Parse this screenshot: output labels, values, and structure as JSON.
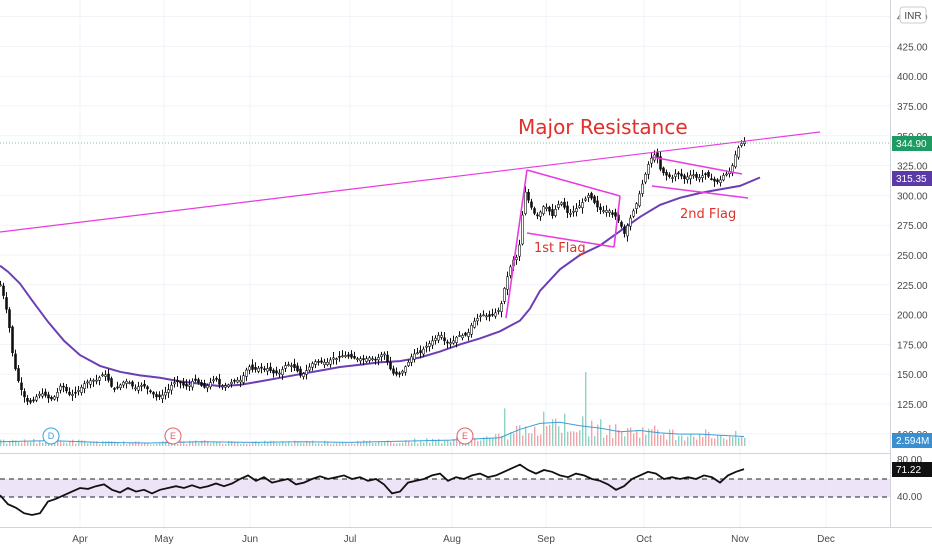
{
  "chart_data": {
    "type": "candlestick",
    "currency": "INR",
    "price_axis": {
      "ticks": [
        "100.00",
        "125.00",
        "150.00",
        "175.00",
        "200.00",
        "225.00",
        "250.00",
        "275.00",
        "300.00",
        "325.00",
        "350.00",
        "375.00",
        "400.00",
        "425.00",
        "450.00"
      ],
      "range": [
        96,
        468
      ]
    },
    "x_axis": {
      "months": [
        "Apr",
        "May",
        "Jun",
        "Jul",
        "Aug",
        "Sep",
        "Oct",
        "Nov",
        "Dec"
      ]
    },
    "last_price": "344.90",
    "ma_value": "315.35",
    "volume_value": "2.594M",
    "rsi": {
      "value": "71.22",
      "ticks": [
        "80.00",
        "40.00"
      ],
      "bands": [
        60,
        40
      ]
    },
    "annotations": {
      "title": "Major Resistance",
      "flag1": "1st Flag",
      "flag2": "2nd Flag"
    },
    "events": [
      {
        "label": "D"
      },
      {
        "label": "E"
      },
      {
        "label": "E"
      }
    ],
    "anchors": {
      "close": [
        [
          0,
          225
        ],
        [
          4,
          213
        ],
        [
          8,
          196
        ],
        [
          12,
          168
        ],
        [
          16,
          150
        ],
        [
          20,
          139
        ],
        [
          24,
          131
        ],
        [
          28,
          126
        ],
        [
          32,
          127
        ],
        [
          36,
          131
        ],
        [
          40,
          134
        ],
        [
          44,
          133
        ],
        [
          48,
          130
        ],
        [
          52,
          129
        ],
        [
          56,
          133
        ],
        [
          60,
          140
        ],
        [
          64,
          139
        ],
        [
          68,
          133
        ],
        [
          72,
          133
        ],
        [
          76,
          135
        ],
        [
          80,
          138
        ],
        [
          84,
          142
        ],
        [
          88,
          144
        ],
        [
          92,
          145
        ],
        [
          96,
          145
        ],
        [
          100,
          148
        ],
        [
          104,
          151
        ],
        [
          108,
          145
        ],
        [
          112,
          138
        ],
        [
          116,
          138
        ],
        [
          120,
          141
        ],
        [
          124,
          144
        ],
        [
          128,
          144
        ],
        [
          132,
          140
        ],
        [
          136,
          138
        ],
        [
          140,
          141
        ],
        [
          144,
          140
        ],
        [
          148,
          137
        ],
        [
          152,
          134
        ],
        [
          156,
          131
        ],
        [
          160,
          131
        ],
        [
          164,
          134
        ],
        [
          168,
          137
        ],
        [
          172,
          142
        ],
        [
          176,
          144
        ],
        [
          180,
          143
        ],
        [
          184,
          140
        ],
        [
          188,
          140
        ],
        [
          192,
          144
        ],
        [
          196,
          145
        ],
        [
          200,
          141
        ],
        [
          204,
          139
        ],
        [
          208,
          141
        ],
        [
          212,
          145
        ],
        [
          216,
          146
        ],
        [
          220,
          140
        ],
        [
          224,
          140
        ],
        [
          228,
          141
        ],
        [
          232,
          144
        ],
        [
          236,
          145
        ],
        [
          240,
          145
        ],
        [
          244,
          150
        ],
        [
          248,
          157
        ],
        [
          252,
          154
        ],
        [
          256,
          154
        ],
        [
          260,
          156
        ],
        [
          264,
          154
        ],
        [
          268,
          155
        ],
        [
          272,
          151
        ],
        [
          276,
          151
        ],
        [
          280,
          151
        ],
        [
          284,
          157
        ],
        [
          288,
          158
        ],
        [
          292,
          157
        ],
        [
          296,
          154
        ],
        [
          300,
          149
        ],
        [
          304,
          151
        ],
        [
          308,
          155
        ],
        [
          312,
          159
        ],
        [
          316,
          161
        ],
        [
          320,
          160
        ],
        [
          324,
          160
        ],
        [
          328,
          160
        ],
        [
          332,
          164
        ],
        [
          336,
          163
        ],
        [
          340,
          165
        ],
        [
          344,
          166
        ],
        [
          348,
          165
        ],
        [
          352,
          164
        ],
        [
          356,
          163
        ],
        [
          360,
          163
        ],
        [
          364,
          162
        ],
        [
          368,
          164
        ],
        [
          372,
          163
        ],
        [
          376,
          162
        ],
        [
          380,
          166
        ],
        [
          384,
          167
        ],
        [
          388,
          158
        ],
        [
          392,
          151
        ],
        [
          396,
          150
        ],
        [
          400,
          150
        ],
        [
          404,
          155
        ],
        [
          408,
          160
        ],
        [
          412,
          166
        ],
        [
          416,
          168
        ],
        [
          420,
          168
        ],
        [
          424,
          172
        ],
        [
          428,
          175
        ],
        [
          432,
          178
        ],
        [
          436,
          181
        ],
        [
          440,
          184
        ],
        [
          444,
          178
        ],
        [
          448,
          176
        ],
        [
          452,
          177
        ],
        [
          456,
          181
        ],
        [
          460,
          183
        ],
        [
          464,
          182
        ],
        [
          468,
          185
        ],
        [
          472,
          193
        ],
        [
          476,
          196
        ],
        [
          480,
          199
        ],
        [
          484,
          200
        ],
        [
          488,
          198
        ],
        [
          492,
          200
        ],
        [
          496,
          202
        ],
        [
          500,
          205
        ],
        [
          504,
          222
        ],
        [
          508,
          235
        ],
        [
          512,
          245
        ],
        [
          516,
          248
        ],
        [
          520,
          262
        ],
        [
          524,
          305
        ],
        [
          528,
          296
        ],
        [
          532,
          288
        ],
        [
          536,
          282
        ],
        [
          540,
          286
        ],
        [
          544,
          292
        ],
        [
          548,
          288
        ],
        [
          552,
          283
        ],
        [
          556,
          290
        ],
        [
          560,
          295
        ],
        [
          564,
          290
        ],
        [
          568,
          284
        ],
        [
          572,
          286
        ],
        [
          576,
          289
        ],
        [
          580,
          292
        ],
        [
          584,
          296
        ],
        [
          588,
          300
        ],
        [
          592,
          297
        ],
        [
          596,
          291
        ],
        [
          600,
          288
        ],
        [
          604,
          287
        ],
        [
          608,
          288
        ],
        [
          612,
          284
        ],
        [
          616,
          282
        ],
        [
          620,
          276
        ],
        [
          624,
          268
        ],
        [
          628,
          277
        ],
        [
          632,
          285
        ],
        [
          636,
          293
        ],
        [
          640,
          304
        ],
        [
          644,
          315
        ],
        [
          648,
          326
        ],
        [
          652,
          333
        ],
        [
          656,
          335
        ],
        [
          660,
          322
        ],
        [
          664,
          318
        ],
        [
          668,
          316
        ],
        [
          672,
          315
        ],
        [
          676,
          319
        ],
        [
          680,
          317
        ],
        [
          684,
          314
        ],
        [
          688,
          316
        ],
        [
          692,
          318
        ],
        [
          696,
          315
        ],
        [
          700,
          315
        ],
        [
          704,
          318
        ],
        [
          708,
          316
        ],
        [
          712,
          313
        ],
        [
          716,
          311
        ],
        [
          720,
          313
        ],
        [
          724,
          318
        ],
        [
          728,
          318
        ],
        [
          732,
          325
        ],
        [
          736,
          337
        ],
        [
          740,
          343
        ],
        [
          744,
          345
        ]
      ],
      "ma": [
        [
          0,
          241
        ],
        [
          8,
          236
        ],
        [
          20,
          226
        ],
        [
          32,
          212
        ],
        [
          48,
          194
        ],
        [
          64,
          178
        ],
        [
          80,
          166
        ],
        [
          100,
          157
        ],
        [
          120,
          152
        ],
        [
          140,
          149
        ],
        [
          160,
          147
        ],
        [
          180,
          144
        ],
        [
          200,
          142
        ],
        [
          220,
          140
        ],
        [
          240,
          141
        ],
        [
          260,
          144
        ],
        [
          280,
          147
        ],
        [
          300,
          150
        ],
        [
          320,
          153
        ],
        [
          340,
          156
        ],
        [
          360,
          158
        ],
        [
          380,
          160
        ],
        [
          400,
          161
        ],
        [
          420,
          164
        ],
        [
          440,
          169
        ],
        [
          460,
          175
        ],
        [
          480,
          180
        ],
        [
          500,
          186
        ],
        [
          520,
          195
        ],
        [
          530,
          205
        ],
        [
          540,
          220
        ],
        [
          560,
          238
        ],
        [
          580,
          250
        ],
        [
          600,
          258
        ],
        [
          620,
          270
        ],
        [
          640,
          282
        ],
        [
          660,
          292
        ],
        [
          680,
          298
        ],
        [
          700,
          302
        ],
        [
          720,
          305
        ],
        [
          740,
          308
        ],
        [
          760,
          315
        ]
      ],
      "volume": [
        [
          0,
          0.35
        ],
        [
          50,
          0.45
        ],
        [
          100,
          0.3
        ],
        [
          150,
          0.25
        ],
        [
          200,
          0.35
        ],
        [
          250,
          0.3
        ],
        [
          300,
          0.35
        ],
        [
          350,
          0.3
        ],
        [
          400,
          0.4
        ],
        [
          450,
          0.5
        ],
        [
          500,
          0.7
        ],
        [
          520,
          1.4
        ],
        [
          540,
          1.9
        ],
        [
          560,
          2.0
        ],
        [
          580,
          1.7
        ],
        [
          600,
          1.5
        ],
        [
          620,
          1.2
        ],
        [
          640,
          1.3
        ],
        [
          660,
          1.1
        ],
        [
          680,
          1.0
        ],
        [
          700,
          1.0
        ],
        [
          720,
          0.9
        ],
        [
          744,
          0.8
        ]
      ],
      "rsi": [
        [
          0,
          42
        ],
        [
          8,
          32
        ],
        [
          16,
          28
        ],
        [
          24,
          22
        ],
        [
          32,
          20
        ],
        [
          40,
          22
        ],
        [
          48,
          35
        ],
        [
          56,
          38
        ],
        [
          64,
          42
        ],
        [
          72,
          46
        ],
        [
          80,
          50
        ],
        [
          88,
          49
        ],
        [
          96,
          52
        ],
        [
          104,
          54
        ],
        [
          112,
          48
        ],
        [
          120,
          45
        ],
        [
          128,
          50
        ],
        [
          136,
          46
        ],
        [
          144,
          48
        ],
        [
          152,
          44
        ],
        [
          160,
          48
        ],
        [
          168,
          50
        ],
        [
          176,
          52
        ],
        [
          184,
          50
        ],
        [
          192,
          53
        ],
        [
          200,
          50
        ],
        [
          208,
          52
        ],
        [
          216,
          55
        ],
        [
          224,
          52
        ],
        [
          232,
          55
        ],
        [
          240,
          60
        ],
        [
          248,
          64
        ],
        [
          256,
          58
        ],
        [
          264,
          62
        ],
        [
          272,
          56
        ],
        [
          280,
          58
        ],
        [
          288,
          60
        ],
        [
          296,
          54
        ],
        [
          304,
          56
        ],
        [
          312,
          60
        ],
        [
          320,
          63
        ],
        [
          328,
          60
        ],
        [
          336,
          62
        ],
        [
          344,
          64
        ],
        [
          352,
          60
        ],
        [
          360,
          62
        ],
        [
          368,
          58
        ],
        [
          376,
          60
        ],
        [
          384,
          54
        ],
        [
          392,
          44
        ],
        [
          400,
          46
        ],
        [
          408,
          56
        ],
        [
          416,
          58
        ],
        [
          424,
          60
        ],
        [
          432,
          64
        ],
        [
          440,
          66
        ],
        [
          448,
          58
        ],
        [
          456,
          62
        ],
        [
          464,
          60
        ],
        [
          472,
          64
        ],
        [
          480,
          66
        ],
        [
          488,
          62
        ],
        [
          496,
          64
        ],
        [
          504,
          68
        ],
        [
          512,
          72
        ],
        [
          520,
          76
        ],
        [
          528,
          70
        ],
        [
          536,
          66
        ],
        [
          544,
          70
        ],
        [
          552,
          68
        ],
        [
          560,
          64
        ],
        [
          568,
          62
        ],
        [
          576,
          66
        ],
        [
          584,
          64
        ],
        [
          592,
          60
        ],
        [
          600,
          58
        ],
        [
          608,
          54
        ],
        [
          616,
          48
        ],
        [
          624,
          52
        ],
        [
          632,
          60
        ],
        [
          640,
          64
        ],
        [
          648,
          68
        ],
        [
          656,
          66
        ],
        [
          664,
          60
        ],
        [
          672,
          62
        ],
        [
          680,
          60
        ],
        [
          688,
          62
        ],
        [
          696,
          60
        ],
        [
          704,
          64
        ],
        [
          712,
          62
        ],
        [
          720,
          56
        ],
        [
          728,
          64
        ],
        [
          736,
          68
        ],
        [
          744,
          71
        ]
      ]
    }
  }
}
